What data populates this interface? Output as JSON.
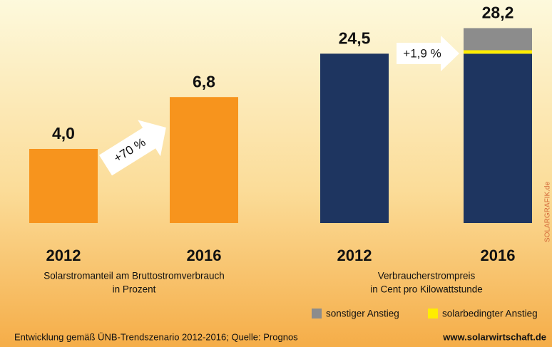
{
  "chart_data": [
    {
      "type": "bar",
      "categories": [
        "2012",
        "2016"
      ],
      "values": [
        4.0,
        6.8
      ],
      "value_labels": [
        "4,0",
        "6,8"
      ],
      "color": "#f7941d",
      "ylim": [
        0,
        10
      ],
      "x_label": [
        "Solarstromanteil am Bruttostromverbrauch",
        "in Prozent"
      ],
      "annotation": "+70 %"
    },
    {
      "type": "stacked_bar",
      "categories": [
        "2012",
        "2016"
      ],
      "series": [
        {
          "color": "#1e3560",
          "values": [
            24.5,
            24.5
          ]
        },
        {
          "name": "solarbedingter Anstieg",
          "color": "#ffed00",
          "values": [
            0,
            0.5
          ]
        },
        {
          "name": "sonstiger Anstieg",
          "color": "#8c8c8c",
          "values": [
            0,
            3.2
          ]
        }
      ],
      "totals": [
        24.5,
        28.2
      ],
      "total_labels": [
        "24,5",
        "28,2"
      ],
      "ylim": [
        0,
        30
      ],
      "x_label": [
        "Verbraucherstrompreis",
        "in Cent pro Kilowattstunde"
      ],
      "annotation": "+1,9 %"
    }
  ],
  "footer": {
    "note": "Entwicklung gemäß ÜNB-Trendszenario 2012-2016; Quelle: Prognos",
    "website": "www.solarwirtschaft.de",
    "watermark": "SOLARGRAFIK.de"
  }
}
